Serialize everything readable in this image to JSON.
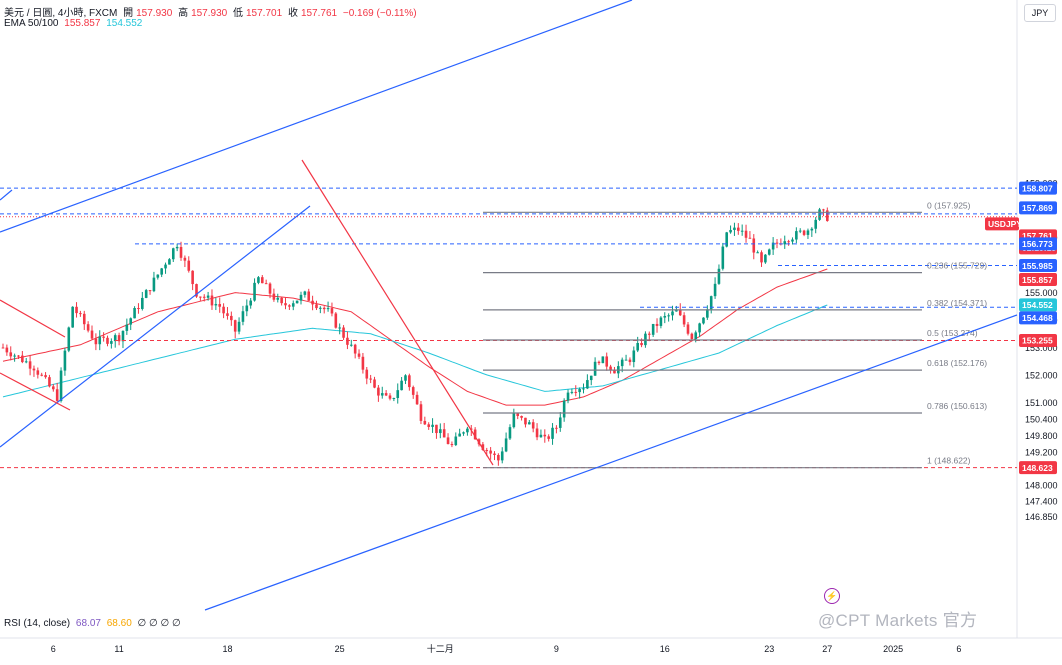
{
  "header": {
    "symbol_line": "美元 / 日圓, 4小時, FXCM",
    "open_label": "開",
    "open_value": "157.930",
    "high_label": "高",
    "high_value": "157.930",
    "low_label": "低",
    "low_value": "157.701",
    "close_label": "收",
    "close_value": "157.761",
    "change": "−0.169 (−0.11%)",
    "ema_label": "EMA 50/100",
    "ema50_value": "155.857",
    "ema100_value": "154.552",
    "rsi_label": "RSI (14, close)",
    "rsi_value": "68.07",
    "rsi_ma_value": "68.60",
    "rsi_empty": "∅ ∅ ∅ ∅"
  },
  "currency_button": "JPY",
  "watermark": "@CPT Markets 官方",
  "alert_icon": "lightning-icon",
  "colors": {
    "candle_up": "#089981",
    "candle_down": "#f23645",
    "ema50": "#f23645",
    "ema100": "#26c6da",
    "trendline": "#2962ff",
    "fib_line": "#787b86",
    "rsi": "#7e57c2",
    "rsi_ma": "#f7c53e"
  },
  "chart_data": {
    "type": "candlestick",
    "symbol": "USDJPY",
    "timeframe": "4小時",
    "y_axis_ticks": [
      159.0,
      157.0,
      155.0,
      154.0,
      153.0,
      152.0,
      151.0,
      150.4,
      149.8,
      149.2,
      148.0,
      147.4,
      146.85
    ],
    "y_range": [
      146.6,
      159.7
    ],
    "x_axis_labels": [
      "6",
      "11",
      "18",
      "25",
      "十二月",
      "9",
      "16",
      "23",
      "27",
      "2025",
      "6"
    ],
    "price_tags": [
      {
        "text": "158.807",
        "kind": "blue"
      },
      {
        "text": "157.869",
        "kind": "blue"
      },
      {
        "text": "USDJPY",
        "kind": "red"
      },
      {
        "text": "157.761",
        "kind": "red"
      },
      {
        "text": "02:19:10",
        "kind": "red"
      },
      {
        "text": "156.773",
        "kind": "blue"
      },
      {
        "text": "155.985",
        "kind": "blue"
      },
      {
        "text": "155.857",
        "kind": "red"
      },
      {
        "text": "154.552",
        "kind": "cyan"
      },
      {
        "text": "154.468",
        "kind": "blue"
      },
      {
        "text": "153.255",
        "kind": "red"
      },
      {
        "text": "148.623",
        "kind": "red"
      }
    ],
    "fibonacci": [
      {
        "label": "0 (157.925)",
        "level": 157.925
      },
      {
        "label": "0.236 (155.729)",
        "level": 155.729
      },
      {
        "label": "0.382 (154.371)",
        "level": 154.371
      },
      {
        "label": "0.5 (153.274)",
        "level": 153.274
      },
      {
        "label": "0.618 (152.176)",
        "level": 152.176
      },
      {
        "label": "0.786 (150.613)",
        "level": 150.613
      },
      {
        "label": "1 (148.622)",
        "level": 148.622
      }
    ],
    "horizontal_levels": [
      {
        "value": 158.807,
        "style": "blue-dashed"
      },
      {
        "value": 157.869,
        "style": "blue-dashed"
      },
      {
        "value": 157.761,
        "style": "red-dotted"
      },
      {
        "value": 156.773,
        "style": "blue-dashed"
      },
      {
        "value": 155.985,
        "style": "blue-dashed"
      },
      {
        "value": 154.468,
        "style": "blue-dashed"
      },
      {
        "value": 153.255,
        "style": "red-dashed"
      },
      {
        "value": 148.623,
        "style": "red-dashed"
      }
    ],
    "price_path": [
      {
        "i": 0,
        "v": 153.0
      },
      {
        "i": 8,
        "v": 152.3
      },
      {
        "i": 14,
        "v": 151.2
      },
      {
        "i": 18,
        "v": 154.5
      },
      {
        "i": 24,
        "v": 153.2
      },
      {
        "i": 30,
        "v": 153.4
      },
      {
        "i": 38,
        "v": 155.2
      },
      {
        "i": 45,
        "v": 156.8
      },
      {
        "i": 50,
        "v": 155.0
      },
      {
        "i": 56,
        "v": 154.5
      },
      {
        "i": 60,
        "v": 153.6
      },
      {
        "i": 66,
        "v": 155.5
      },
      {
        "i": 72,
        "v": 154.5
      },
      {
        "i": 78,
        "v": 154.9
      },
      {
        "i": 84,
        "v": 154.3
      },
      {
        "i": 90,
        "v": 153.0
      },
      {
        "i": 96,
        "v": 151.5
      },
      {
        "i": 100,
        "v": 151.0
      },
      {
        "i": 104,
        "v": 152.0
      },
      {
        "i": 108,
        "v": 150.5
      },
      {
        "i": 112,
        "v": 150.0
      },
      {
        "i": 116,
        "v": 149.4
      },
      {
        "i": 120,
        "v": 150.2
      },
      {
        "i": 124,
        "v": 149.4
      },
      {
        "i": 128,
        "v": 148.9
      },
      {
        "i": 132,
        "v": 150.5
      },
      {
        "i": 136,
        "v": 150.2
      },
      {
        "i": 140,
        "v": 149.6
      },
      {
        "i": 143,
        "v": 150.1
      },
      {
        "i": 146,
        "v": 151.5
      },
      {
        "i": 150,
        "v": 151.6
      },
      {
        "i": 154,
        "v": 152.6
      },
      {
        "i": 158,
        "v": 152.2
      },
      {
        "i": 162,
        "v": 152.6
      },
      {
        "i": 166,
        "v": 153.4
      },
      {
        "i": 170,
        "v": 154.0
      },
      {
        "i": 174,
        "v": 154.3
      },
      {
        "i": 178,
        "v": 153.4
      },
      {
        "i": 181,
        "v": 154.2
      },
      {
        "i": 184,
        "v": 155.2
      },
      {
        "i": 187,
        "v": 157.2
      },
      {
        "i": 190,
        "v": 157.3
      },
      {
        "i": 193,
        "v": 156.9
      },
      {
        "i": 196,
        "v": 156.0
      },
      {
        "i": 199,
        "v": 156.7
      },
      {
        "i": 202,
        "v": 157.0
      },
      {
        "i": 205,
        "v": 157.1
      },
      {
        "i": 208,
        "v": 157.3
      },
      {
        "i": 211,
        "v": 157.9
      },
      {
        "i": 213,
        "v": 157.76
      }
    ],
    "ema50_path": [
      {
        "i": 0,
        "v": 152.5
      },
      {
        "i": 20,
        "v": 153.1
      },
      {
        "i": 40,
        "v": 154.3
      },
      {
        "i": 60,
        "v": 155.0
      },
      {
        "i": 75,
        "v": 154.8
      },
      {
        "i": 90,
        "v": 154.3
      },
      {
        "i": 100,
        "v": 153.3
      },
      {
        "i": 110,
        "v": 152.3
      },
      {
        "i": 120,
        "v": 151.4
      },
      {
        "i": 130,
        "v": 150.9
      },
      {
        "i": 140,
        "v": 150.9
      },
      {
        "i": 150,
        "v": 151.2
      },
      {
        "i": 160,
        "v": 151.8
      },
      {
        "i": 170,
        "v": 152.6
      },
      {
        "i": 180,
        "v": 153.4
      },
      {
        "i": 190,
        "v": 154.4
      },
      {
        "i": 200,
        "v": 155.2
      },
      {
        "i": 213,
        "v": 155.86
      }
    ],
    "ema100_path": [
      {
        "i": 0,
        "v": 151.2
      },
      {
        "i": 20,
        "v": 151.9
      },
      {
        "i": 40,
        "v": 152.6
      },
      {
        "i": 60,
        "v": 153.3
      },
      {
        "i": 80,
        "v": 153.7
      },
      {
        "i": 95,
        "v": 153.5
      },
      {
        "i": 110,
        "v": 152.8
      },
      {
        "i": 125,
        "v": 152.0
      },
      {
        "i": 140,
        "v": 151.4
      },
      {
        "i": 155,
        "v": 151.6
      },
      {
        "i": 170,
        "v": 152.2
      },
      {
        "i": 185,
        "v": 152.8
      },
      {
        "i": 200,
        "v": 153.8
      },
      {
        "i": 213,
        "v": 154.55
      }
    ]
  }
}
